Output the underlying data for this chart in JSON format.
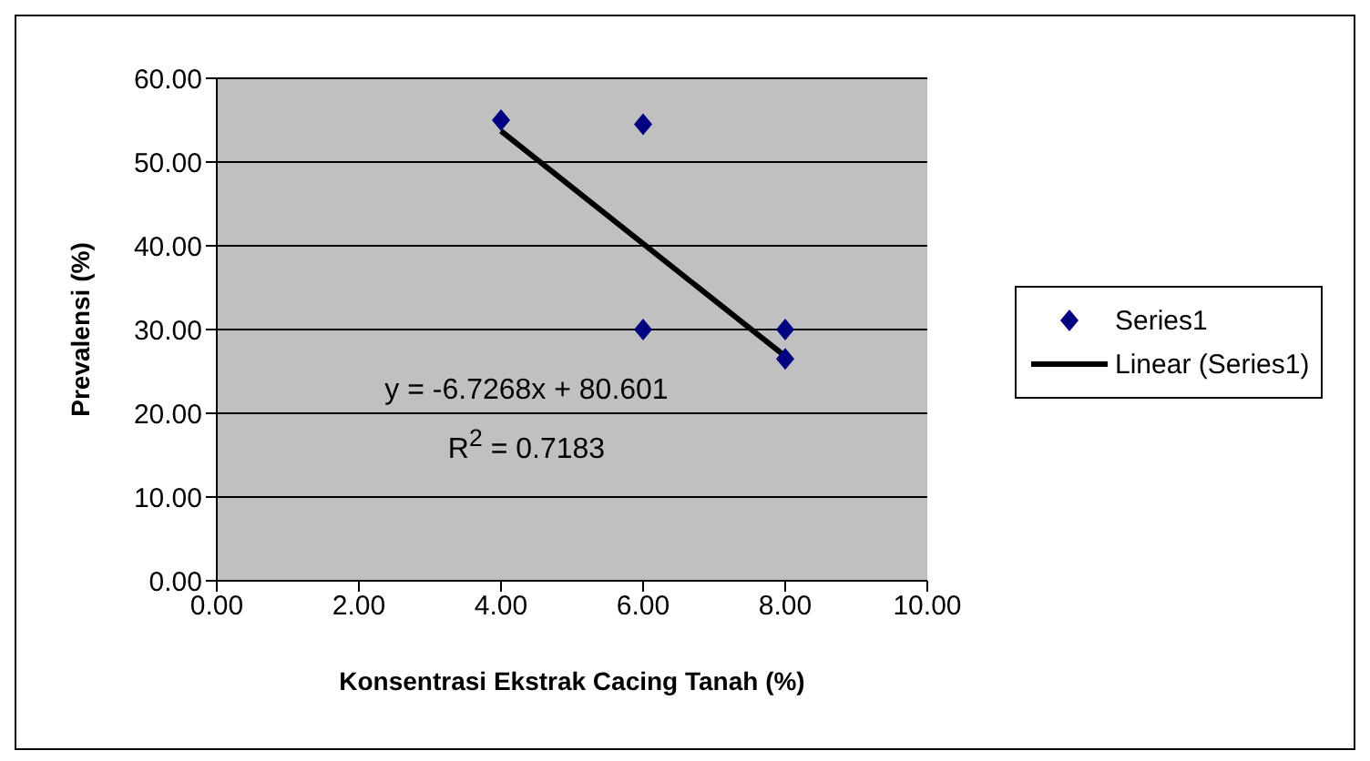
{
  "chart_data": {
    "type": "scatter",
    "xlabel": "Konsentrasi Ekstrak Cacing Tanah (%)",
    "ylabel": "Prevalensi (%)",
    "xlim": [
      0,
      10
    ],
    "xticks": [
      {
        "value": 0,
        "label": "0.00"
      },
      {
        "value": 2,
        "label": "2.00"
      },
      {
        "value": 4,
        "label": "4.00"
      },
      {
        "value": 6,
        "label": "6.00"
      },
      {
        "value": 8,
        "label": "8.00"
      },
      {
        "value": 10,
        "label": "10.00"
      }
    ],
    "ylim": [
      0,
      60
    ],
    "yticks": [
      {
        "value": 0,
        "label": "0.00"
      },
      {
        "value": 10,
        "label": "10.00"
      },
      {
        "value": 20,
        "label": "20.00"
      },
      {
        "value": 30,
        "label": "30.00"
      },
      {
        "value": 40,
        "label": "40.00"
      },
      {
        "value": 50,
        "label": "50.00"
      },
      {
        "value": 60,
        "label": "60.00"
      }
    ],
    "grid": "y",
    "legend": "right",
    "marker": "diamond",
    "series": [
      {
        "name": "Series1",
        "color": "#000080",
        "x": [
          4,
          6,
          6,
          8,
          8
        ],
        "values": [
          55,
          54.5,
          30,
          30,
          26.5
        ]
      },
      {
        "name": "Linear (Series1)",
        "type": "line",
        "color": "#000000",
        "x": [
          4,
          8
        ],
        "values": [
          53.7,
          26.8
        ],
        "marker": "none",
        "line_style": "solid"
      }
    ],
    "annotations": [
      "y = -6.7268x + 80.601",
      "R$^{2}$ = 0.7183"
    ]
  }
}
